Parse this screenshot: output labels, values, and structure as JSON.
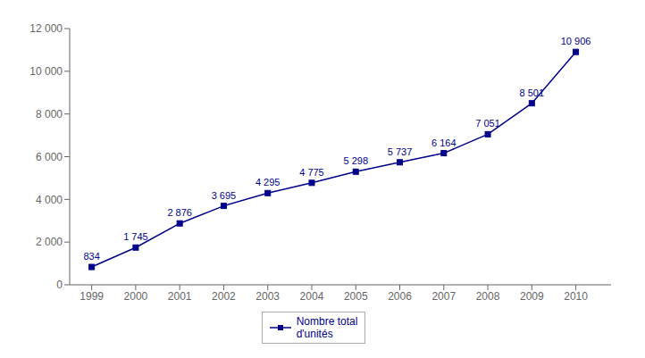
{
  "chart_data": {
    "type": "line",
    "x": [
      1999,
      2000,
      2001,
      2002,
      2003,
      2004,
      2005,
      2006,
      2007,
      2008,
      2009,
      2010
    ],
    "series": [
      {
        "name": "Nombre total\nd'unités",
        "color": "#00008B",
        "marker": "square",
        "values": [
          834,
          1745,
          2876,
          3695,
          4295,
          4775,
          5298,
          5737,
          6164,
          7051,
          8501,
          10906
        ],
        "value_labels": [
          "834",
          "1 745",
          "2 876",
          "3 695",
          "4 295",
          "4 775",
          "5 298",
          "5 737",
          "6 164",
          "7 051",
          "8 501",
          "10 906"
        ]
      }
    ],
    "xlim": [
      1998.5,
      2010.8
    ],
    "xticks": [
      1999,
      2000,
      2001,
      2002,
      2003,
      2004,
      2005,
      2006,
      2007,
      2008,
      2009,
      2010
    ],
    "ylim": [
      0,
      12000
    ],
    "yticks": [
      0,
      {
        "value": 2000,
        "label": "2 000"
      },
      {
        "value": 4000,
        "label": "4 000"
      },
      {
        "value": 6000,
        "label": "6 000"
      },
      {
        "value": 8000,
        "label": "8 000"
      },
      {
        "value": 10000,
        "label": "10 000"
      },
      {
        "value": 12000,
        "label": "12 000"
      }
    ],
    "grid": false,
    "legend": "bottom",
    "data_labels": true
  }
}
